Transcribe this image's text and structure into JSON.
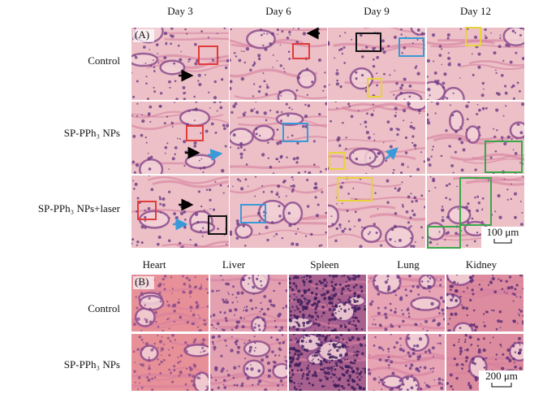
{
  "panel_a": {
    "label": "(A)",
    "columns": [
      "Day 3",
      "Day 6",
      "Day 9",
      "Day 12"
    ],
    "rows": [
      "Control",
      "SP-PPh₃ NPs",
      "SP-PPh₃ NPs+laser"
    ],
    "scale_bar": "100 μm"
  },
  "panel_b": {
    "label": "(B)",
    "columns": [
      "Heart",
      "Liver",
      "Spleen",
      "Lung",
      "Kidney"
    ],
    "rows": [
      "Control",
      "SP-PPh₃ NPs"
    ],
    "scale_bar": "200 μm"
  }
}
